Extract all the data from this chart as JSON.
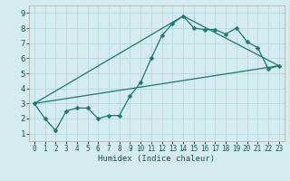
{
  "xlabel": "Humidex (Indice chaleur)",
  "bg_color": "#d4ecf0",
  "grid_color": "#b8d8de",
  "line_color": "#1a7a6e",
  "xlim": [
    -0.5,
    23.5
  ],
  "ylim": [
    0.5,
    9.5
  ],
  "xticks": [
    0,
    1,
    2,
    3,
    4,
    5,
    6,
    7,
    8,
    9,
    10,
    11,
    12,
    13,
    14,
    15,
    16,
    17,
    18,
    19,
    20,
    21,
    22,
    23
  ],
  "yticks": [
    1,
    2,
    3,
    4,
    5,
    6,
    7,
    8,
    9
  ],
  "line1_x": [
    0,
    1,
    2,
    3,
    4,
    5,
    6,
    7,
    8,
    9,
    10,
    11,
    12,
    13,
    14,
    15,
    16,
    17,
    18,
    19,
    20,
    21,
    22,
    23
  ],
  "line1_y": [
    3.0,
    2.0,
    1.2,
    2.5,
    2.7,
    2.7,
    2.0,
    2.2,
    2.2,
    3.5,
    4.4,
    6.0,
    7.5,
    8.3,
    8.8,
    8.0,
    7.9,
    7.9,
    7.6,
    8.0,
    7.1,
    6.7,
    5.3,
    5.5
  ],
  "line2_x": [
    0,
    23
  ],
  "line2_y": [
    3.0,
    5.5
  ],
  "line3_x": [
    0,
    14,
    23
  ],
  "line3_y": [
    3.0,
    8.8,
    5.5
  ],
  "tick_fontsize": 5.5,
  "xlabel_fontsize": 6.5,
  "marker_size": 2.5,
  "line_width": 0.9
}
